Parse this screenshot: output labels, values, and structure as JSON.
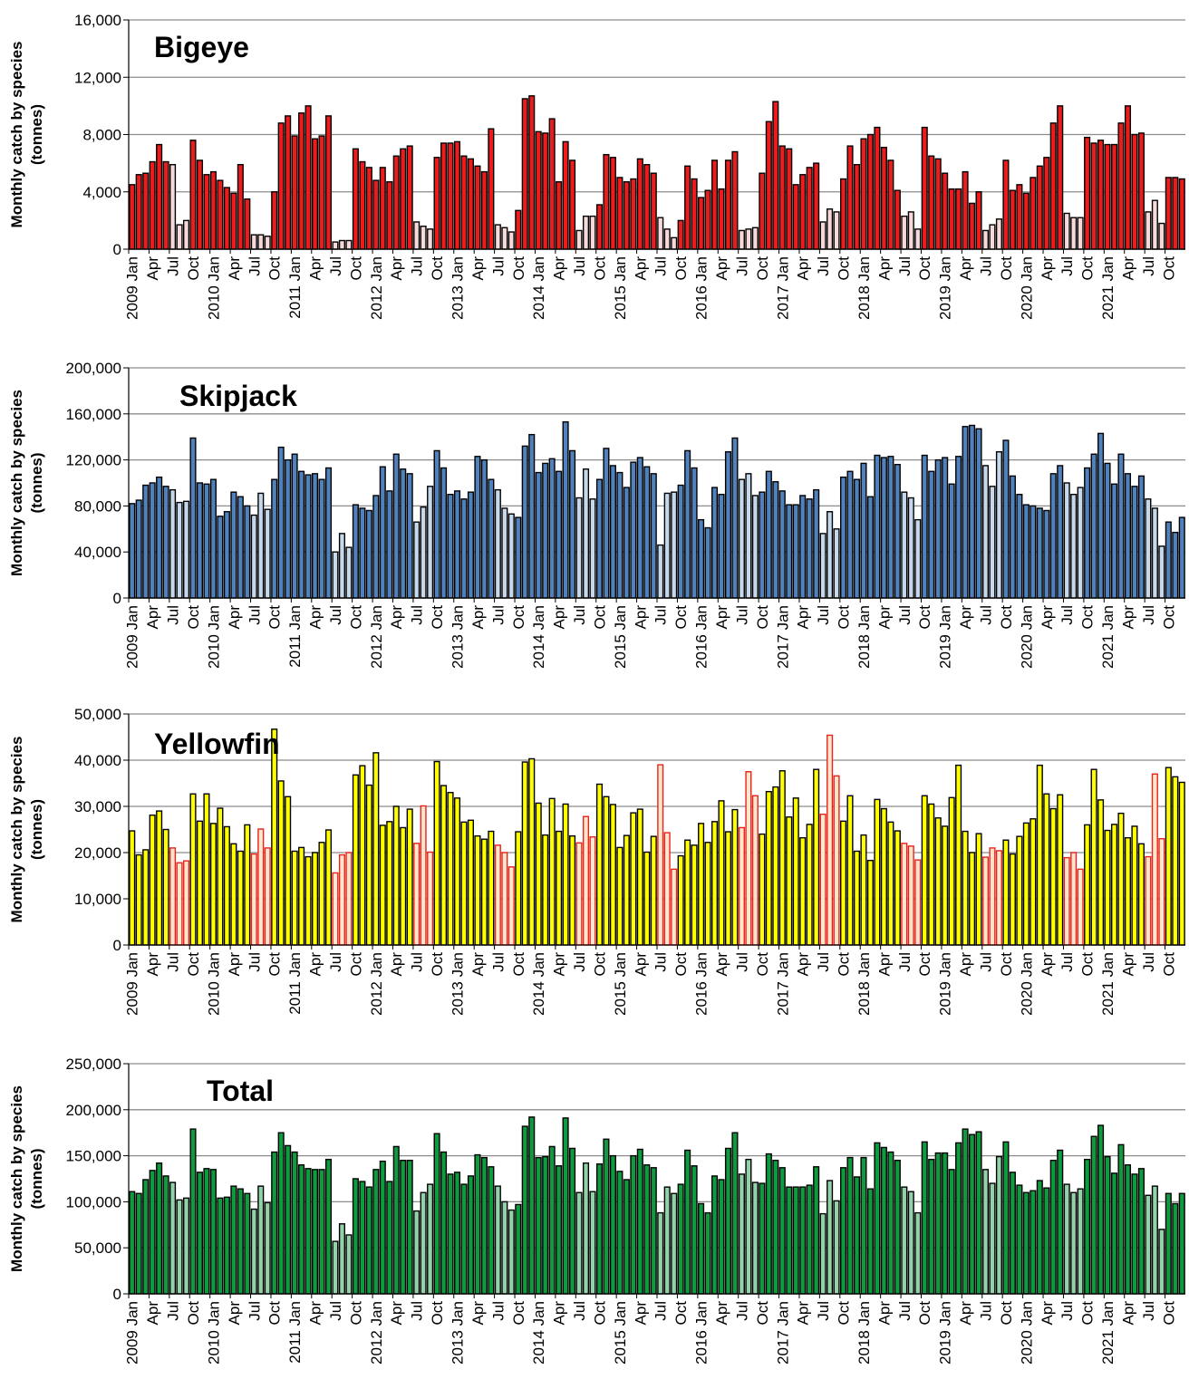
{
  "colors": {
    "bigeye_dark": "#ED1C1C",
    "bigeye_light": "#F7D9D9",
    "skipjack_dark": "#4F81BD",
    "skipjack_light": "#C6D9EC",
    "yellowfin_dark": "#FFFF00",
    "yellowfin_light": "#FFE6CC",
    "yellowfin_light_stroke": "#E8221C",
    "total_dark": "#0E9A3E",
    "total_light": "#92D2A9",
    "gridline": "#8C8C8C",
    "axis": "#000000"
  },
  "chart_data": [
    {
      "type": "bar",
      "title": "Bigeye",
      "ylabel": "Monthly catch by species (tonnes)",
      "ylim": [
        0,
        16000
      ],
      "yticks": [
        "0",
        "4,000",
        "8,000",
        "12,000",
        "16,000"
      ],
      "x_tick_labels": [
        "2009 Jan",
        "Apr",
        "Jul",
        "Oct",
        "2010 Jan",
        "Apr",
        "Jul",
        "Oct",
        "2011 Jan",
        "Apr",
        "Jul",
        "Oct",
        "2012 Jan",
        "Apr",
        "Jul",
        "Oct",
        "2013 Jan",
        "Apr",
        "Jul",
        "Oct",
        "2014 Jan",
        "Apr",
        "Jul",
        "Oct",
        "2015 Jan",
        "Apr",
        "Jul",
        "Oct",
        "2016 Jan",
        "Apr",
        "Jul",
        "Oct",
        "2017 Jan",
        "Apr",
        "Jul",
        "Oct",
        "2018 Jan",
        "Apr",
        "Jul",
        "Oct",
        "2019 Jan",
        "Apr",
        "Jul",
        "Oct",
        "2020 Jan",
        "Apr",
        "Jul",
        "Oct",
        "2021 Jan",
        "Apr",
        "Jul",
        "Oct"
      ],
      "grid": true,
      "highlight_months": "Jul, Aug, Sep (lighter fill)",
      "values": [
        4500,
        5200,
        5300,
        6100,
        7300,
        6100,
        5900,
        1700,
        2000,
        7600,
        6200,
        5200,
        5400,
        4800,
        4300,
        3900,
        5900,
        3500,
        1000,
        1000,
        900,
        4000,
        8800,
        9300,
        7900,
        9500,
        10000,
        7700,
        7900,
        9300,
        500,
        600,
        600,
        7000,
        6100,
        5700,
        4800,
        5700,
        4700,
        6500,
        7000,
        7200,
        1900,
        1600,
        1400,
        6400,
        7400,
        7400,
        7500,
        6500,
        6300,
        5800,
        5400,
        8400,
        1700,
        1500,
        1200,
        2700,
        10500,
        10700,
        8200,
        8100,
        9100,
        4700,
        7500,
        6200,
        1300,
        2300,
        2300,
        3100,
        6600,
        6400,
        5000,
        4700,
        4900,
        6300,
        5900,
        5300,
        2200,
        1400,
        800,
        2000,
        5800,
        4900,
        3600,
        4100,
        6200,
        4200,
        6200,
        6800,
        1300,
        1400,
        1500,
        5300,
        8900,
        10300,
        7200,
        7000,
        4500,
        5200,
        5700,
        6000,
        1900,
        2800,
        2600,
        4900,
        7200,
        5900,
        7700,
        8000,
        8500,
        7100,
        6200,
        4100,
        2300,
        2600,
        1400,
        8500,
        6500,
        6300,
        5300,
        4200,
        4200,
        5400,
        3200,
        4000,
        1300,
        1700,
        2100,
        6200,
        4100,
        4500,
        3900,
        5000,
        5800,
        6400,
        8800,
        10000,
        2500,
        2200,
        2200,
        7800,
        7400,
        7600,
        7300,
        7300,
        8800,
        10000,
        8000,
        8100,
        2600,
        3400,
        1800,
        5000,
        5000,
        4900
      ]
    },
    {
      "type": "bar",
      "title": "Skipjack",
      "ylabel": "Monthly catch by species (tonnes)",
      "ylim": [
        0,
        200000
      ],
      "yticks": [
        "0",
        "40,000",
        "80,000",
        "120,000",
        "160,000",
        "200,000"
      ],
      "x_tick_labels": [
        "2009 Jan",
        "Apr",
        "Jul",
        "Oct",
        "2010 Jan",
        "Apr",
        "Jul",
        "Oct",
        "2011 Jan",
        "Apr",
        "Jul",
        "Oct",
        "2012 Jan",
        "Apr",
        "Jul",
        "Oct",
        "2013 Jan",
        "Apr",
        "Jul",
        "Oct",
        "2014 Jan",
        "Apr",
        "Jul",
        "Oct",
        "2015 Jan",
        "Apr",
        "Jul",
        "Oct",
        "2016 Jan",
        "Apr",
        "Jul",
        "Oct",
        "2017 Jan",
        "Apr",
        "Jul",
        "Oct",
        "2018 Jan",
        "Apr",
        "Jul",
        "Oct",
        "2019 Jan",
        "Apr",
        "Jul",
        "Oct",
        "2020 Jan",
        "Apr",
        "Jul",
        "Oct",
        "2021 Jan",
        "Apr",
        "Jul",
        "Oct"
      ],
      "grid": true,
      "highlight_months": "Jul, Aug, Sep (lighter fill)",
      "values": [
        82000,
        85000,
        98000,
        100000,
        105000,
        97000,
        94000,
        83000,
        84000,
        139000,
        100000,
        99000,
        103000,
        71000,
        75000,
        92000,
        88000,
        80000,
        72000,
        91000,
        77000,
        103000,
        131000,
        120000,
        125000,
        110000,
        107000,
        108000,
        103000,
        113000,
        40000,
        56000,
        44000,
        81000,
        78000,
        76000,
        89000,
        114000,
        93000,
        125000,
        112000,
        108000,
        66000,
        79000,
        97000,
        128000,
        113000,
        90000,
        93000,
        86000,
        92000,
        123000,
        120000,
        103000,
        94000,
        78000,
        73000,
        70000,
        132000,
        142000,
        109000,
        117000,
        121000,
        110000,
        153000,
        128000,
        87000,
        112000,
        86000,
        103000,
        130000,
        115000,
        109000,
        96000,
        118000,
        122000,
        114000,
        108000,
        46000,
        91000,
        92000,
        98000,
        128000,
        113000,
        68000,
        61000,
        96000,
        90000,
        127000,
        139000,
        103000,
        108000,
        89000,
        92000,
        110000,
        101000,
        93000,
        81000,
        81000,
        89000,
        86000,
        94000,
        56000,
        75000,
        60000,
        105000,
        110000,
        103000,
        117000,
        88000,
        124000,
        122000,
        123000,
        116000,
        92000,
        87000,
        68000,
        124000,
        110000,
        120000,
        122000,
        99000,
        123000,
        149000,
        150000,
        147000,
        115000,
        97000,
        127000,
        137000,
        106000,
        90000,
        81000,
        80000,
        78000,
        76000,
        108000,
        115000,
        100000,
        90000,
        96000,
        113000,
        125000,
        143000,
        117000,
        99000,
        125000,
        108000,
        97000,
        106000,
        86000,
        78000,
        45000,
        66000,
        57000,
        70000
      ]
    },
    {
      "type": "bar",
      "title": "Yellowfin",
      "ylabel": "Monthly catch by species (tonnes)",
      "ylim": [
        0,
        50000
      ],
      "yticks": [
        "0",
        "10,000",
        "20,000",
        "30,000",
        "40,000",
        "50,000"
      ],
      "x_tick_labels": [
        "2009 Jan",
        "Apr",
        "Jul",
        "Oct",
        "2010 Jan",
        "Apr",
        "Jul",
        "Oct",
        "2011 Jan",
        "Apr",
        "Jul",
        "Oct",
        "2012 Jan",
        "Apr",
        "Jul",
        "Oct",
        "2013 Jan",
        "Apr",
        "Jul",
        "Oct",
        "2014 Jan",
        "Apr",
        "Jul",
        "Oct",
        "2015 Jan",
        "Apr",
        "Jul",
        "Oct",
        "2016 Jan",
        "Apr",
        "Jul",
        "Oct",
        "2017 Jan",
        "Apr",
        "Jul",
        "Oct",
        "2018 Jan",
        "Apr",
        "Jul",
        "Oct",
        "2019 Jan",
        "Apr",
        "Jul",
        "Oct",
        "2020 Jan",
        "Apr",
        "Jul",
        "Oct",
        "2021 Jan",
        "Apr",
        "Jul",
        "Oct"
      ],
      "grid": true,
      "highlight_months": "Jul, Aug, Sep (light fill, red outline)",
      "values": [
        24700,
        19500,
        20600,
        28100,
        29000,
        25000,
        21000,
        17800,
        18200,
        32700,
        26800,
        32700,
        26300,
        29600,
        25600,
        21900,
        20300,
        26000,
        19700,
        25100,
        21000,
        46700,
        35500,
        32100,
        20300,
        21100,
        19100,
        20000,
        22200,
        24900,
        15600,
        19500,
        20000,
        36800,
        38800,
        34600,
        41600,
        25900,
        26700,
        30000,
        25400,
        29400,
        22000,
        30100,
        20100,
        39700,
        34500,
        33000,
        31800,
        26600,
        27000,
        23600,
        22900,
        24600,
        21600,
        20000,
        16900,
        24500,
        39600,
        40300,
        30700,
        23800,
        31700,
        24600,
        30500,
        23600,
        22100,
        27800,
        23400,
        34800,
        32100,
        30400,
        21100,
        23700,
        28600,
        29400,
        20100,
        23500,
        39000,
        24300,
        16400,
        19300,
        22700,
        21600,
        26300,
        22200,
        26700,
        31200,
        24500,
        29300,
        25400,
        37500,
        32300,
        24000,
        33200,
        34200,
        37700,
        27700,
        31800,
        23200,
        26100,
        38000,
        28300,
        45400,
        36600,
        26800,
        32300,
        20300,
        23800,
        18300,
        31500,
        29500,
        26600,
        24700,
        22000,
        21400,
        18400,
        32300,
        30500,
        27500,
        25700,
        31900,
        38900,
        24600,
        20000,
        24100,
        19000,
        21000,
        20400,
        22700,
        19700,
        23500,
        26400,
        27300,
        38900,
        32700,
        29500,
        32500,
        18900,
        20000,
        16400,
        26000,
        38000,
        31400,
        24800,
        26100,
        28500,
        23200,
        25700,
        21900,
        19100,
        37000,
        23000,
        38400,
        36400,
        35200
      ]
    },
    {
      "type": "bar",
      "title": "Total",
      "ylabel": "Monthly catch by species (tonnes)",
      "ylim": [
        0,
        250000
      ],
      "yticks": [
        "0",
        "50,000",
        "100,000",
        "150,000",
        "200,000",
        "250,000"
      ],
      "x_tick_labels": [
        "2009 Jan",
        "Apr",
        "Jul",
        "Oct",
        "2010 Jan",
        "Apr",
        "Jul",
        "Oct",
        "2011 Jan",
        "Apr",
        "Jul",
        "Oct",
        "2012 Jan",
        "Apr",
        "Jul",
        "Oct",
        "2013 Jan",
        "Apr",
        "Jul",
        "Oct",
        "2014 Jan",
        "Apr",
        "Jul",
        "Oct",
        "2015 Jan",
        "Apr",
        "Jul",
        "Oct",
        "2016 Jan",
        "Apr",
        "Jul",
        "Oct",
        "2017 Jan",
        "Apr",
        "Jul",
        "Oct",
        "2018 Jan",
        "Apr",
        "Jul",
        "Oct",
        "2019 Jan",
        "Apr",
        "Jul",
        "Oct",
        "2020 Jan",
        "Apr",
        "Jul",
        "Oct",
        "2021 Jan",
        "Apr",
        "Jul",
        "Oct"
      ],
      "grid": true,
      "highlight_months": "Jul, Aug, Sep (lighter fill)",
      "values": [
        111000,
        109000,
        124000,
        134000,
        142000,
        128000,
        121000,
        102000,
        104000,
        179000,
        132000,
        136000,
        135000,
        104000,
        105000,
        117000,
        114000,
        109000,
        92000,
        117000,
        99000,
        154000,
        175000,
        161000,
        154000,
        140000,
        136000,
        135000,
        135000,
        146000,
        57000,
        76000,
        64000,
        125000,
        122000,
        116000,
        135000,
        144000,
        122000,
        160000,
        145000,
        145000,
        90000,
        110000,
        119000,
        174000,
        154000,
        130000,
        132000,
        119000,
        128000,
        151000,
        148000,
        138000,
        117000,
        100000,
        91000,
        97000,
        182000,
        192000,
        148000,
        149000,
        160000,
        139000,
        191000,
        158000,
        110000,
        142000,
        111000,
        141000,
        168000,
        150000,
        133000,
        124000,
        150000,
        157000,
        140000,
        137000,
        88000,
        116000,
        109000,
        119000,
        156000,
        139000,
        98000,
        88000,
        128000,
        124000,
        158000,
        175000,
        130000,
        146000,
        121000,
        120000,
        152000,
        145000,
        137000,
        116000,
        116000,
        116000,
        118000,
        138000,
        87000,
        123000,
        101000,
        137000,
        148000,
        127000,
        148000,
        114000,
        164000,
        159000,
        154000,
        145000,
        116000,
        111000,
        88000,
        165000,
        146000,
        153000,
        153000,
        135000,
        164000,
        179000,
        173000,
        176000,
        135000,
        120000,
        149000,
        165000,
        132000,
        118000,
        110000,
        112000,
        123000,
        115000,
        145000,
        156000,
        119000,
        110000,
        114000,
        146000,
        171000,
        183000,
        149000,
        131000,
        162000,
        140000,
        130000,
        136000,
        107000,
        117000,
        70000,
        109000,
        98000,
        109000
      ]
    }
  ]
}
